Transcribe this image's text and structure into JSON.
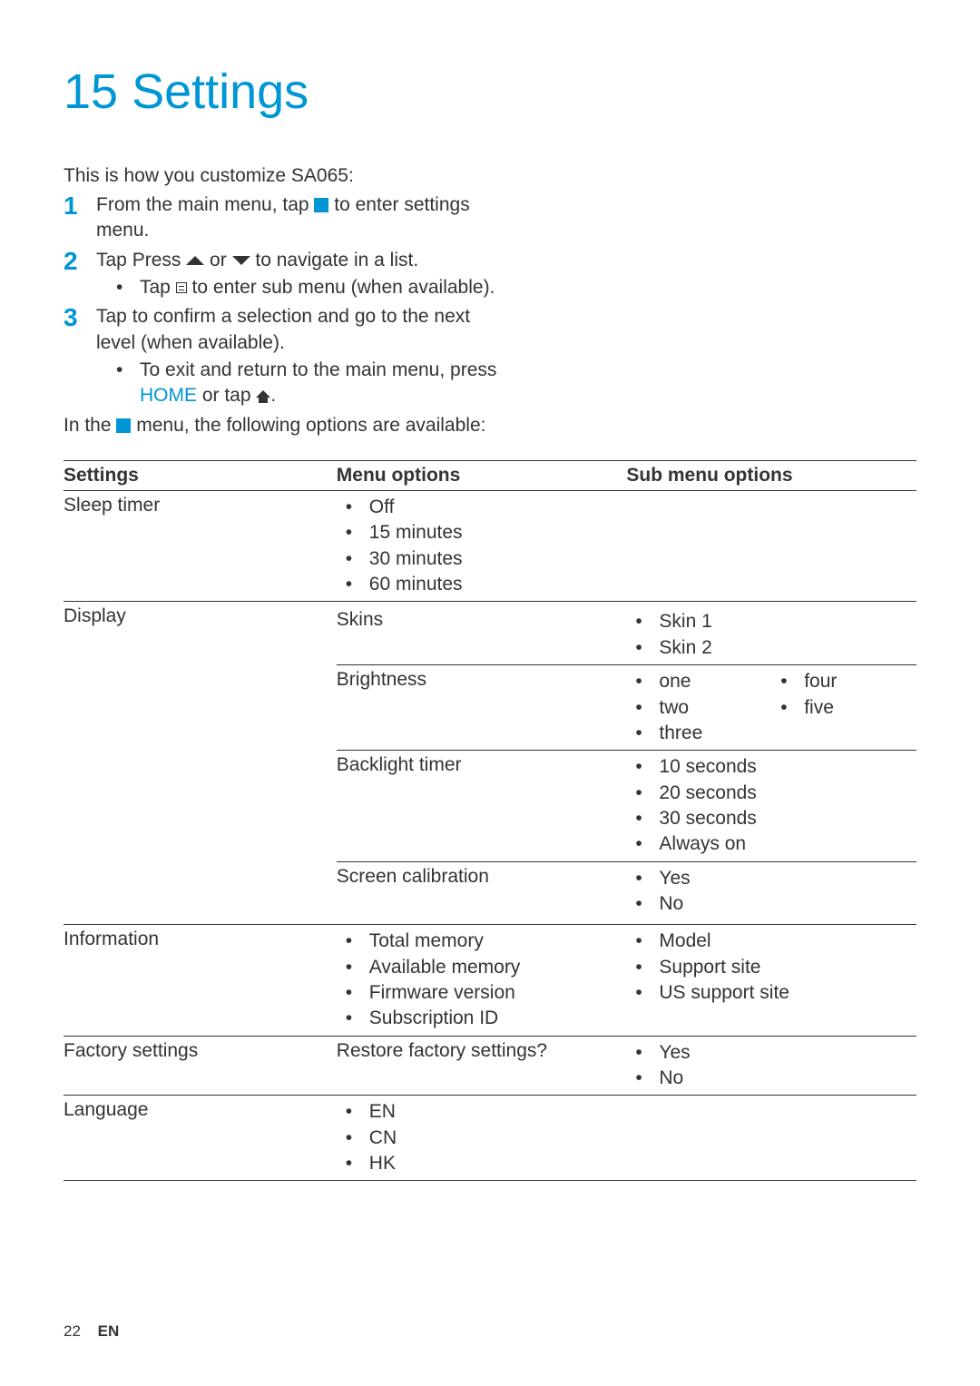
{
  "colors": {
    "accent": "#0096d6",
    "text": "#333333",
    "rule": "#333333",
    "background": "#ffffff"
  },
  "typography": {
    "heading_fontsize_pt": 40,
    "body_fontsize_pt": 16,
    "stepnum_fontsize_pt": 21,
    "font_family": "Gill Sans"
  },
  "heading": "15 Settings",
  "intro": "This is how you customize SA065:",
  "steps": [
    {
      "text_before": "From the main menu, tap ",
      "icon": "gear-icon",
      "text_after": " to enter settings menu.",
      "sub": []
    },
    {
      "text_before": "Tap Press ",
      "icon_mid1": "arrow-up-icon",
      "mid_text": " or ",
      "icon_mid2": "arrow-down-icon",
      "text_after": " to navigate in a list.",
      "sub": [
        {
          "before": "Tap ",
          "icon": "menu-icon",
          "after": " to enter sub menu (when available)."
        }
      ]
    },
    {
      "text_before": "Tap to confirm a selection and go to the next level (when available).",
      "sub": [
        {
          "before": "To exit and return to the main menu, press ",
          "accent_text": "HOME",
          "mid": " or tap ",
          "icon": "home-icon",
          "after": "."
        }
      ]
    }
  ],
  "closing_pre": "In the ",
  "closing_icon": "gear-icon",
  "closing_post": " menu, the following options are available:",
  "table": {
    "headers": [
      "Settings",
      "Menu options",
      "Sub menu options"
    ],
    "column_widths_pct": [
      32,
      34,
      34
    ],
    "rows": [
      {
        "setting": "Sleep timer",
        "menu": {
          "type": "bullets",
          "items": [
            "Off",
            "15 minutes",
            "30 minutes",
            "60 minutes"
          ]
        },
        "sub": null
      },
      {
        "setting": "Display",
        "subrows": [
          {
            "menu": "Skins",
            "sub": {
              "type": "bullets",
              "items": [
                "Skin 1",
                "Skin 2"
              ]
            }
          },
          {
            "menu": "Brightness",
            "sub": {
              "type": "two-col-bullets",
              "col_a": [
                "one",
                "two",
                "three"
              ],
              "col_b": [
                "four",
                "five"
              ]
            }
          },
          {
            "menu": "Backlight timer",
            "sub": {
              "type": "bullets",
              "items": [
                "10 seconds",
                "20 seconds",
                "30 seconds",
                "Always on"
              ]
            }
          },
          {
            "menu": "Screen calibration",
            "sub": {
              "type": "bullets",
              "items": [
                "Yes",
                "No"
              ]
            }
          }
        ]
      },
      {
        "setting": "Information",
        "menu": {
          "type": "bullets",
          "items": [
            "Total memory",
            "Available memory",
            "Firmware version",
            "Subscription ID"
          ]
        },
        "sub": {
          "type": "bullets",
          "items": [
            "Model",
            "Support site",
            "US support site"
          ]
        }
      },
      {
        "setting": "Factory settings",
        "menu": {
          "type": "text",
          "text": "Restore factory settings?"
        },
        "sub": {
          "type": "bullets",
          "items": [
            "Yes",
            "No"
          ]
        }
      },
      {
        "setting": "Language",
        "menu": {
          "type": "bullets",
          "items": [
            "EN",
            "CN",
            "HK"
          ]
        },
        "sub": null
      }
    ]
  },
  "footer": {
    "page": "22",
    "lang": "EN"
  }
}
